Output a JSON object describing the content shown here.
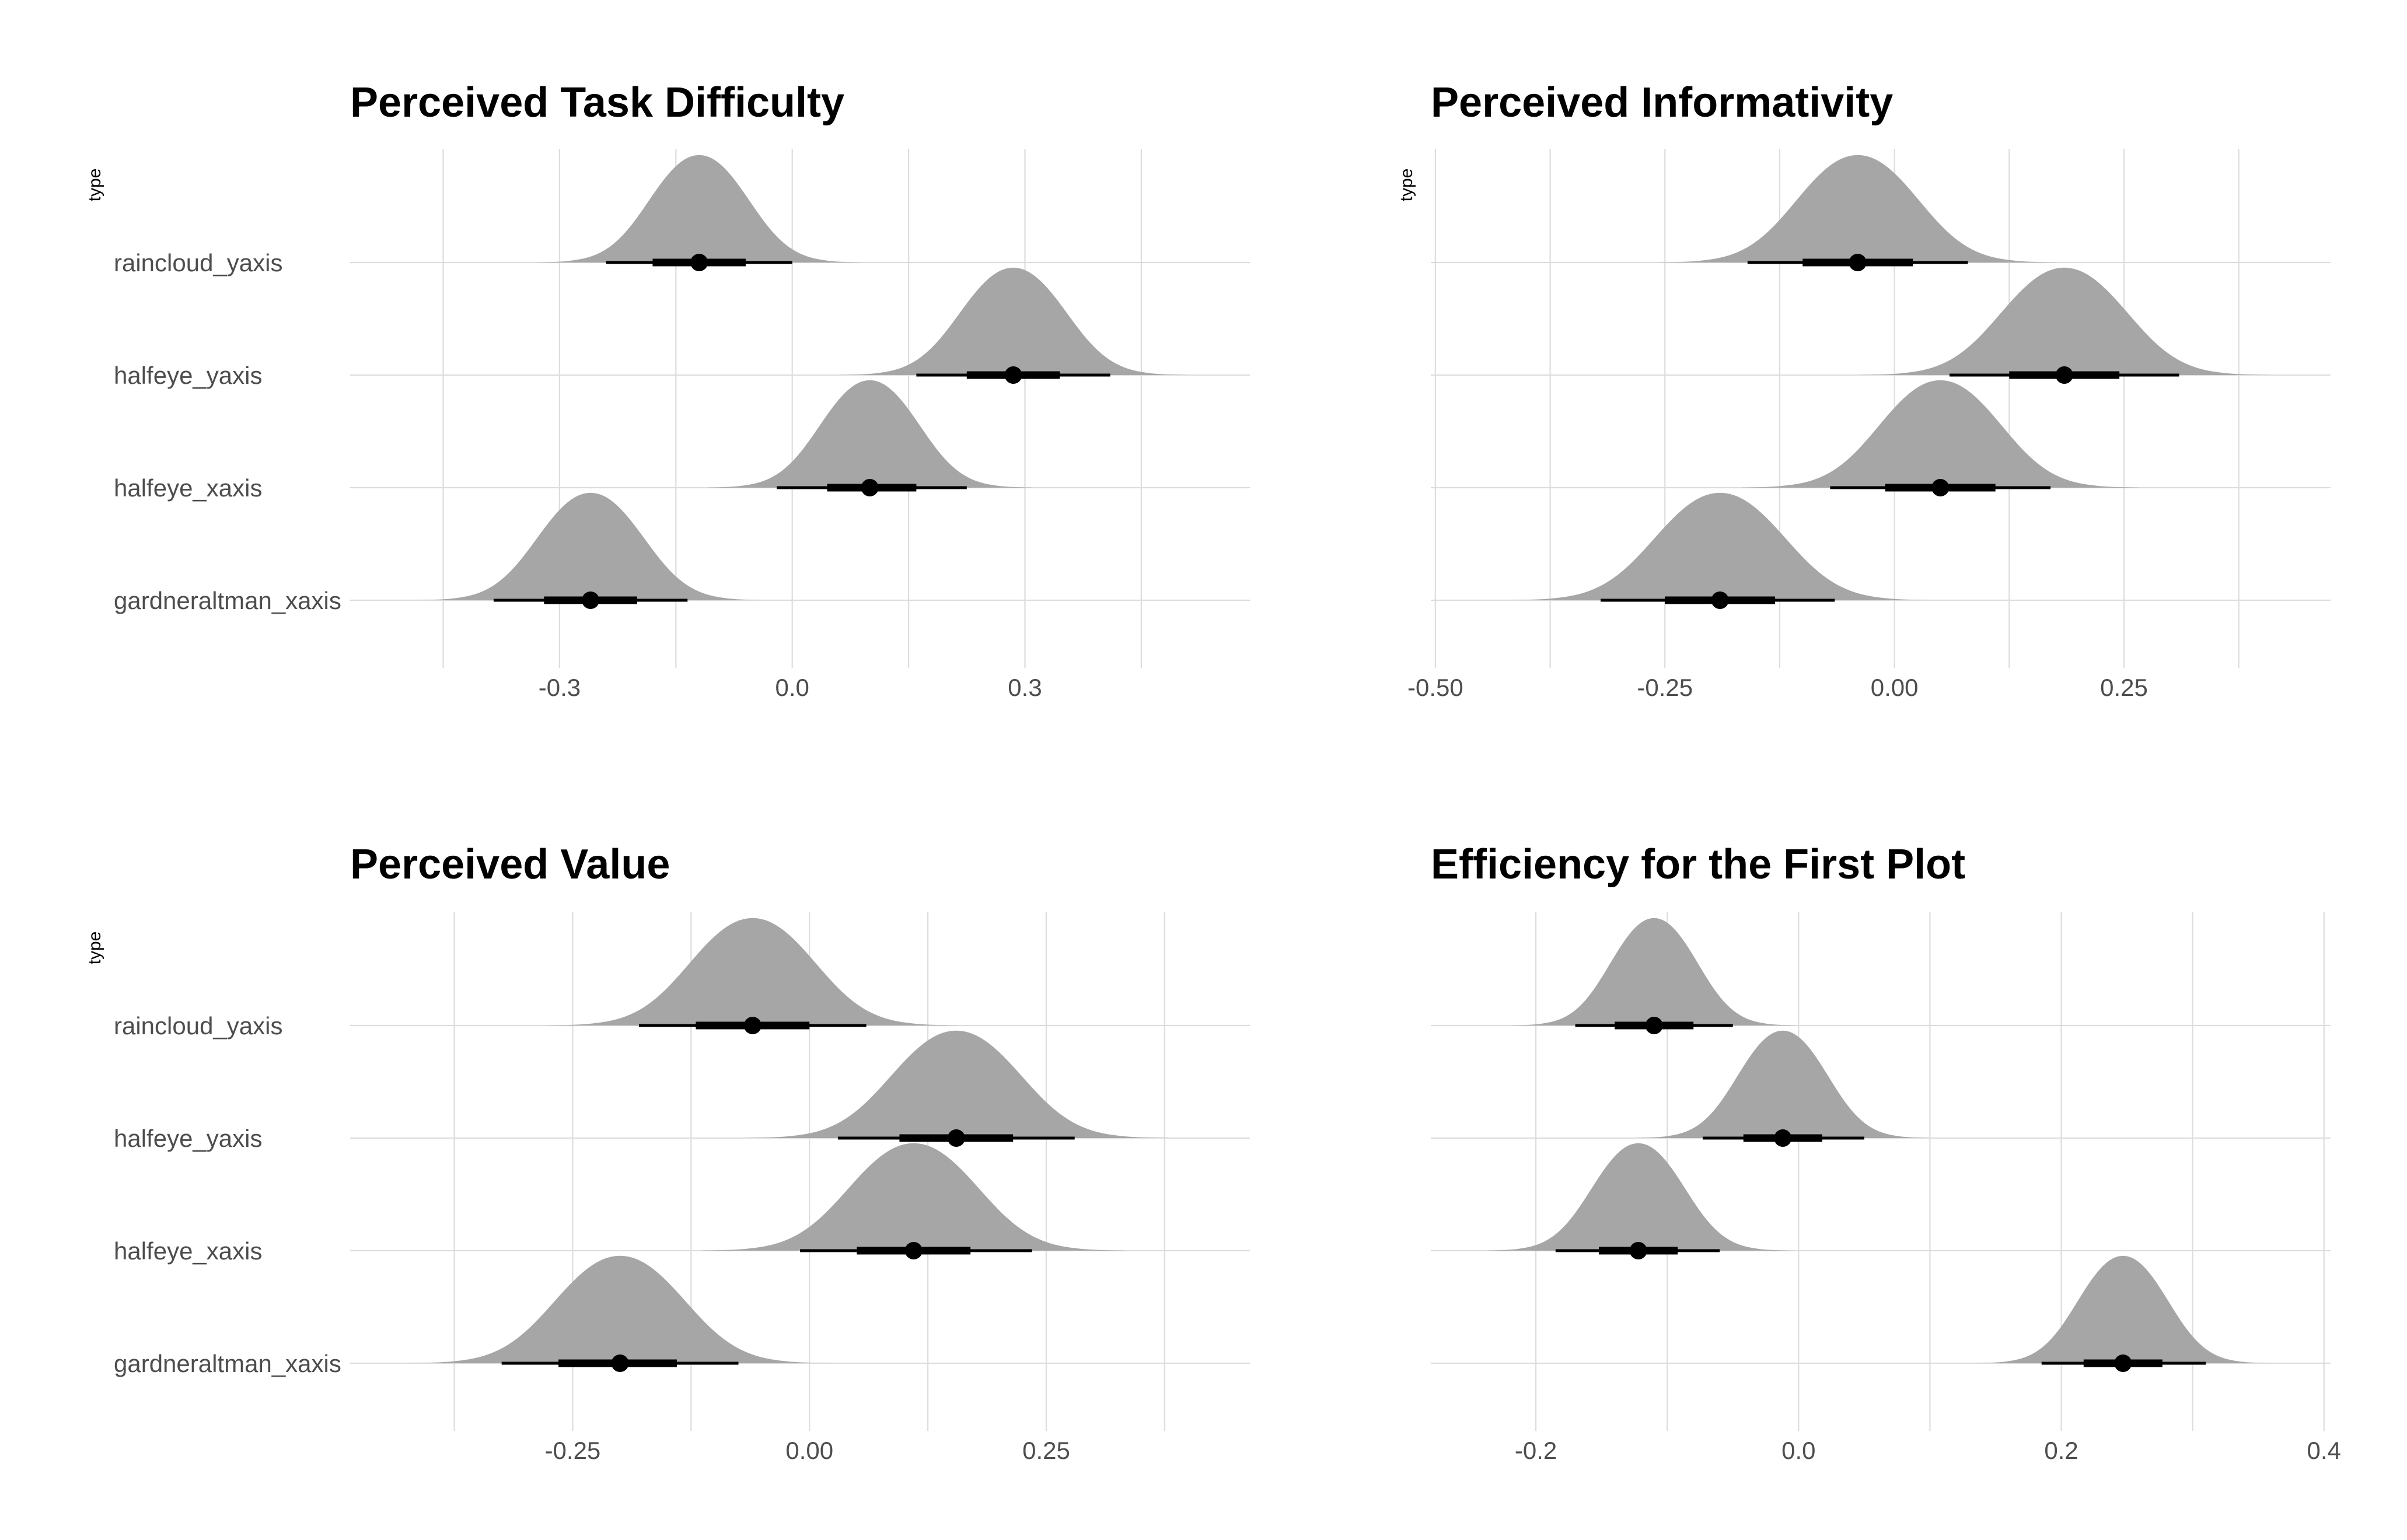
{
  "colors": {
    "density_fill": "#a6a6a6",
    "interval": "#000000",
    "grid": "#dddddd",
    "label_text": "#4d4d4d",
    "title_text": "#000000"
  },
  "chart_data": [
    {
      "type": "halfeye",
      "title": "Perceived Task Difficulty",
      "ylabel": "type",
      "xlabel": "",
      "categories": [
        "raincloud_yaxis",
        "halfeye_yaxis",
        "halfeye_xaxis",
        "gardneraltman_xaxis"
      ],
      "xlim": [
        -0.57,
        0.59
      ],
      "ticks": [
        -0.3,
        0.0,
        0.3
      ],
      "tick_labels": [
        "-0.3",
        "0.0",
        "0.3"
      ],
      "minor_ticks": [
        -0.45,
        -0.15,
        0.15,
        0.45
      ],
      "grid": true,
      "series": [
        {
          "category": "raincloud_yaxis",
          "median": -0.12,
          "q66": [
            -0.18,
            -0.06
          ],
          "q95": [
            -0.24,
            0.0
          ],
          "sd": 0.058
        },
        {
          "category": "halfeye_yaxis",
          "median": 0.285,
          "q66": [
            0.225,
            0.345
          ],
          "q95": [
            0.16,
            0.41
          ],
          "sd": 0.062
        },
        {
          "category": "halfeye_xaxis",
          "median": 0.1,
          "q66": [
            0.045,
            0.16
          ],
          "q95": [
            -0.02,
            0.225
          ],
          "sd": 0.058
        },
        {
          "category": "gardneraltman_xaxis",
          "median": -0.26,
          "q66": [
            -0.32,
            -0.2
          ],
          "q95": [
            -0.385,
            -0.135
          ],
          "sd": 0.062
        }
      ]
    },
    {
      "type": "halfeye",
      "title": "Perceived Informativity",
      "ylabel": "type",
      "xlabel": "",
      "categories": [
        "raincloud_yaxis",
        "halfeye_yaxis",
        "halfeye_xaxis",
        "gardneraltman_xaxis"
      ],
      "xlim": [
        -0.505,
        0.475
      ],
      "ticks": [
        -0.5,
        -0.25,
        0.0,
        0.25
      ],
      "tick_labels": [
        "-0.50",
        "-0.25",
        "0.00",
        "0.25"
      ],
      "minor_ticks": [
        -0.375,
        -0.125,
        0.125,
        0.375
      ],
      "grid": true,
      "series": [
        {
          "category": "raincloud_yaxis",
          "median": -0.04,
          "q66": [
            -0.1,
            0.02
          ],
          "q95": [
            -0.16,
            0.08
          ],
          "sd": 0.06
        },
        {
          "category": "halfeye_yaxis",
          "median": 0.185,
          "q66": [
            0.125,
            0.245
          ],
          "q95": [
            0.06,
            0.31
          ],
          "sd": 0.062
        },
        {
          "category": "halfeye_xaxis",
          "median": 0.05,
          "q66": [
            -0.01,
            0.11
          ],
          "q95": [
            -0.07,
            0.17
          ],
          "sd": 0.06
        },
        {
          "category": "gardneraltman_xaxis",
          "median": -0.19,
          "q66": [
            -0.25,
            -0.13
          ],
          "q95": [
            -0.32,
            -0.065
          ],
          "sd": 0.064
        }
      ]
    },
    {
      "type": "halfeye",
      "title": "Perceived Value",
      "ylabel": "type",
      "xlabel": "",
      "categories": [
        "raincloud_yaxis",
        "halfeye_yaxis",
        "halfeye_xaxis",
        "gardneraltman_xaxis"
      ],
      "xlim": [
        -0.485,
        0.465
      ],
      "ticks": [
        -0.25,
        0.0,
        0.25
      ],
      "tick_labels": [
        "-0.25",
        "0.00",
        "0.25"
      ],
      "minor_ticks": [
        -0.375,
        -0.125,
        0.125,
        0.375
      ],
      "grid": true,
      "series": [
        {
          "category": "raincloud_yaxis",
          "median": -0.06,
          "q66": [
            -0.12,
            0.0
          ],
          "q95": [
            -0.18,
            0.06
          ],
          "sd": 0.06
        },
        {
          "category": "halfeye_yaxis",
          "median": 0.155,
          "q66": [
            0.095,
            0.215
          ],
          "q95": [
            0.03,
            0.28
          ],
          "sd": 0.062
        },
        {
          "category": "halfeye_xaxis",
          "median": 0.11,
          "q66": [
            0.05,
            0.17
          ],
          "q95": [
            -0.01,
            0.235
          ],
          "sd": 0.062
        },
        {
          "category": "gardneraltman_xaxis",
          "median": -0.2,
          "q66": [
            -0.265,
            -0.14
          ],
          "q95": [
            -0.325,
            -0.075
          ],
          "sd": 0.062
        }
      ]
    },
    {
      "type": "halfeye",
      "title": "Efficiency for the First Plot",
      "ylabel": "",
      "xlabel": "",
      "categories": [
        "raincloud_yaxis",
        "halfeye_yaxis",
        "halfeye_xaxis",
        "gardneraltman_xaxis"
      ],
      "xlim": [
        -0.28,
        0.405
      ],
      "ticks": [
        -0.2,
        0.0,
        0.2,
        0.4
      ],
      "tick_labels": [
        "-0.2",
        "0.0",
        "0.2",
        "0.4"
      ],
      "minor_ticks": [
        -0.1,
        0.1,
        0.3
      ],
      "grid": true,
      "series": [
        {
          "category": "raincloud_yaxis",
          "median": -0.11,
          "q66": [
            -0.14,
            -0.08
          ],
          "q95": [
            -0.17,
            -0.05
          ],
          "sd": 0.03
        },
        {
          "category": "halfeye_yaxis",
          "median": -0.012,
          "q66": [
            -0.042,
            0.018
          ],
          "q95": [
            -0.073,
            0.05
          ],
          "sd": 0.031
        },
        {
          "category": "halfeye_xaxis",
          "median": -0.122,
          "q66": [
            -0.152,
            -0.092
          ],
          "q95": [
            -0.185,
            -0.06
          ],
          "sd": 0.032
        },
        {
          "category": "gardneraltman_xaxis",
          "median": 0.247,
          "q66": [
            0.217,
            0.277
          ],
          "q95": [
            0.185,
            0.31
          ],
          "sd": 0.031
        }
      ]
    }
  ]
}
